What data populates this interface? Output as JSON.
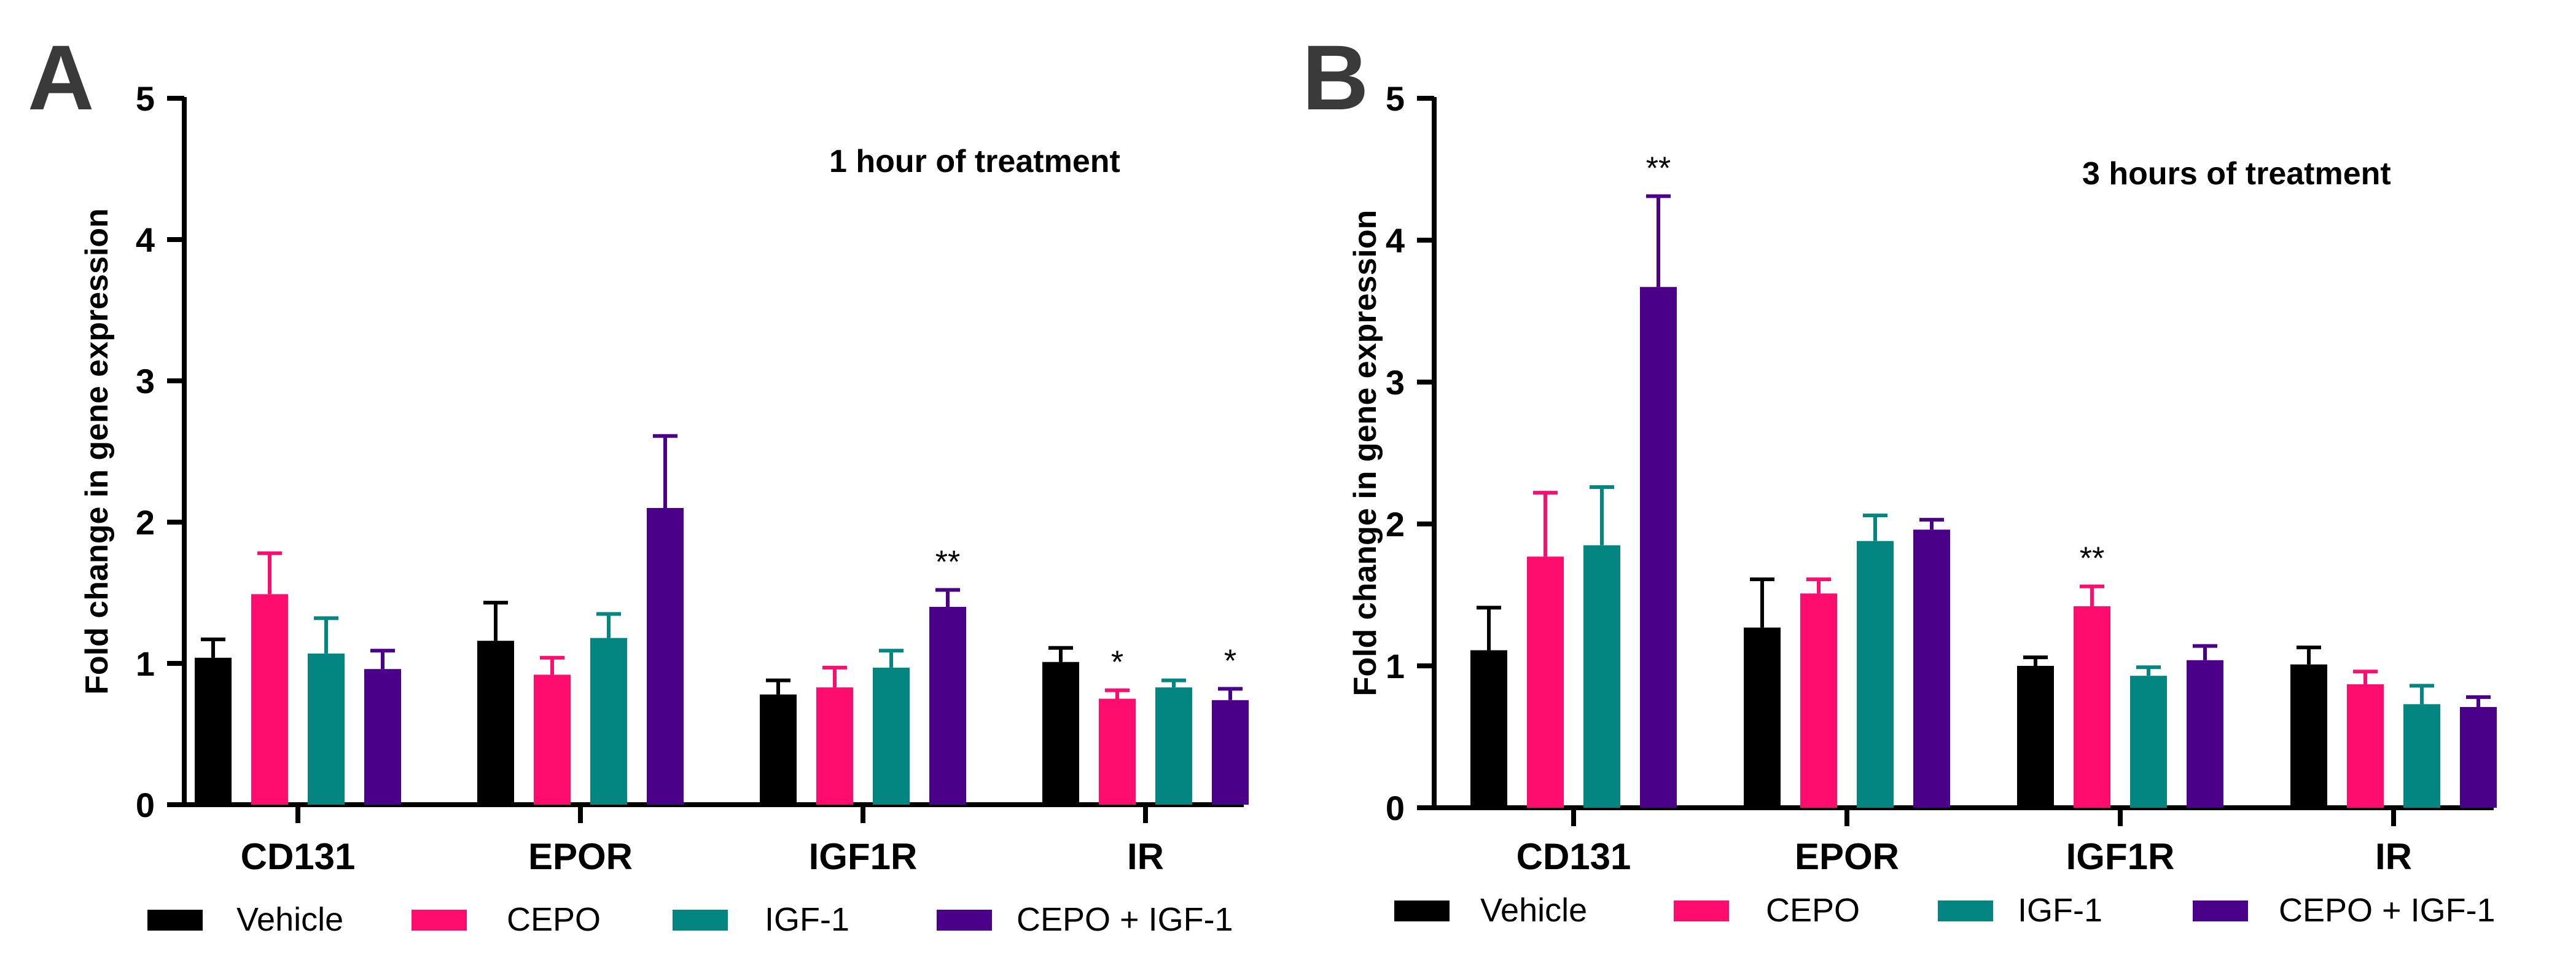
{
  "colors": {
    "vehicle": "#000000",
    "cepo": "#ff0d6e",
    "igf1": "#038582",
    "cepo_igf1": "#4b008a"
  },
  "chart_data": [
    {
      "type": "bar",
      "panel": "A",
      "title": "1 hour of treatment",
      "xlabel": "",
      "ylabel": "Fold change in gene expression",
      "ylim": [
        0,
        5
      ],
      "yticks": [
        "0",
        "1",
        "2",
        "3",
        "4",
        "5"
      ],
      "categories": [
        "CD131",
        "EPOR",
        "IGF1R",
        "IR"
      ],
      "series": [
        {
          "name": "Vehicle",
          "values": [
            1.04,
            1.16,
            0.78,
            1.01
          ],
          "errors": [
            0.13,
            0.27,
            0.1,
            0.1
          ],
          "significance": [
            "",
            "",
            "",
            ""
          ]
        },
        {
          "name": "CEPO",
          "values": [
            1.49,
            0.92,
            0.83,
            0.75
          ],
          "errors": [
            0.29,
            0.12,
            0.14,
            0.06
          ],
          "significance": [
            "",
            "",
            "",
            "*"
          ]
        },
        {
          "name": "IGF-1",
          "values": [
            1.07,
            1.18,
            0.97,
            0.83
          ],
          "errors": [
            0.25,
            0.17,
            0.12,
            0.05
          ],
          "significance": [
            "",
            "",
            "",
            ""
          ]
        },
        {
          "name": "CEPO + IGF-1",
          "values": [
            0.96,
            2.1,
            1.4,
            0.74
          ],
          "errors": [
            0.13,
            0.51,
            0.12,
            0.08
          ],
          "significance": [
            "",
            "",
            "**",
            "*"
          ]
        }
      ],
      "legend": [
        "Vehicle",
        "CEPO",
        "IGF-1",
        "CEPO + IGF-1"
      ],
      "legend_position": "bottom"
    },
    {
      "type": "bar",
      "panel": "B",
      "title": "3 hours of treatment",
      "xlabel": "",
      "ylabel": "Fold change in gene expression",
      "ylim": [
        0,
        5
      ],
      "yticks": [
        "0",
        "1",
        "2",
        "3",
        "4",
        "5"
      ],
      "categories": [
        "CD131",
        "EPOR",
        "IGF1R",
        "IR"
      ],
      "series": [
        {
          "name": "Vehicle",
          "values": [
            1.11,
            1.27,
            1.0,
            1.01
          ],
          "errors": [
            0.3,
            0.34,
            0.06,
            0.12
          ],
          "significance": [
            "",
            "",
            "",
            ""
          ]
        },
        {
          "name": "CEPO",
          "values": [
            1.77,
            1.51,
            1.42,
            0.87
          ],
          "errors": [
            0.45,
            0.1,
            0.14,
            0.09
          ],
          "significance": [
            "",
            "",
            "**",
            ""
          ]
        },
        {
          "name": "IGF-1",
          "values": [
            1.85,
            1.88,
            0.93,
            0.73
          ],
          "errors": [
            0.41,
            0.18,
            0.06,
            0.13
          ],
          "significance": [
            "",
            "",
            "",
            ""
          ]
        },
        {
          "name": "CEPO + IGF-1",
          "values": [
            3.67,
            1.96,
            1.04,
            0.71
          ],
          "errors": [
            0.64,
            0.07,
            0.1,
            0.07
          ],
          "significance": [
            "**",
            "",
            "",
            ""
          ]
        }
      ],
      "legend": [
        "Vehicle",
        "CEPO",
        "IGF-1",
        "CEPO + IGF-1"
      ],
      "legend_position": "bottom"
    }
  ]
}
